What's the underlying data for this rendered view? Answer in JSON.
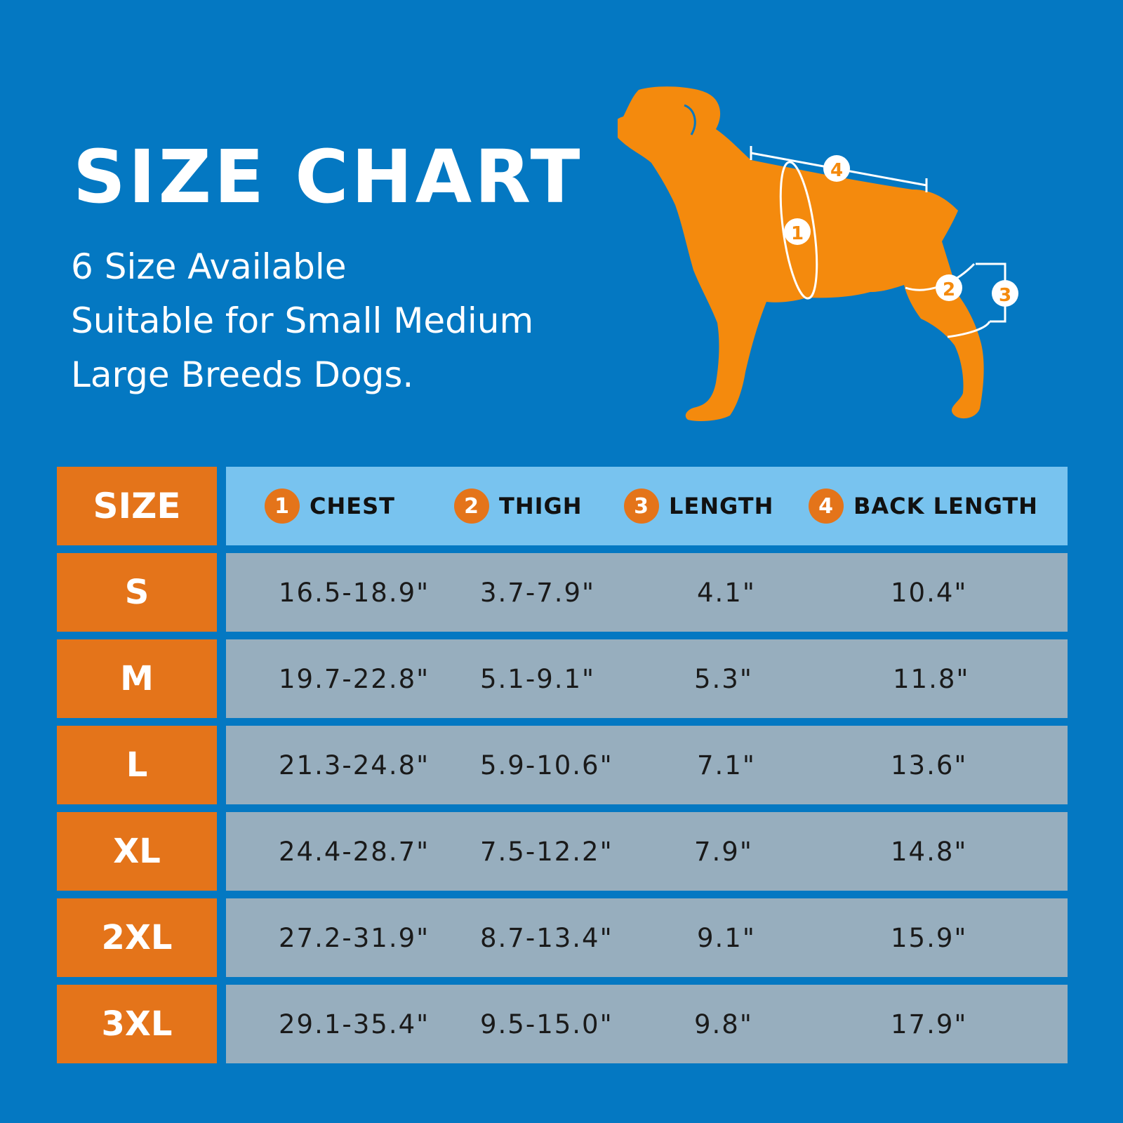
{
  "header": {
    "title": "SIZE CHART",
    "subtitle_lines": [
      "6 Size Available",
      "Suitable for Small Medium",
      "Large Breeds Dogs."
    ]
  },
  "diagram": {
    "dog_color": "#f48a0d",
    "markers": [
      "1",
      "2",
      "3",
      "4"
    ]
  },
  "table": {
    "size_header": "SIZE",
    "columns": [
      {
        "num": "1",
        "label": "CHEST"
      },
      {
        "num": "2",
        "label": "THIGH"
      },
      {
        "num": "3",
        "label": "LENGTH"
      },
      {
        "num": "4",
        "label": "BACK LENGTH"
      }
    ],
    "rows": [
      {
        "size": "S",
        "chest": "16.5-18.9\"",
        "thigh": "3.7-7.9\"",
        "length": "4.1\"",
        "back": "10.4\""
      },
      {
        "size": "M",
        "chest": "19.7-22.8\"",
        "thigh": "5.1-9.1\"",
        "length": "5.3\"",
        "back": "11.8\""
      },
      {
        "size": "L",
        "chest": "21.3-24.8\"",
        "thigh": "5.9-10.6\"",
        "length": "7.1\"",
        "back": "13.6\""
      },
      {
        "size": "XL",
        "chest": "24.4-28.7\"",
        "thigh": "7.5-12.2\"",
        "length": "7.9\"",
        "back": "14.8\""
      },
      {
        "size": "2XL",
        "chest": "27.2-31.9\"",
        "thigh": "8.7-13.4\"",
        "length": "9.1\"",
        "back": "15.9\""
      },
      {
        "size": "3XL",
        "chest": "29.1-35.4\"",
        "thigh": "9.5-15.0\"",
        "length": "9.8\"",
        "back": "17.9\""
      }
    ]
  },
  "colors": {
    "background": "#0478c2",
    "size_cell": "#e4741a",
    "header_row": "#78c3ef",
    "data_row": "#97aebe"
  }
}
